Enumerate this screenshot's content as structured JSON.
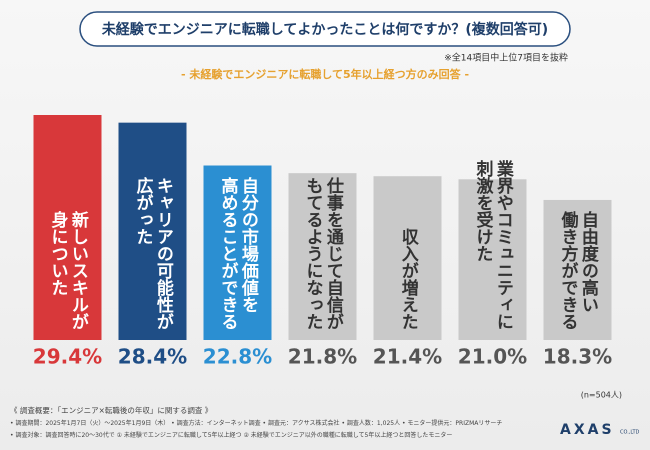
{
  "chart_data": {
    "type": "bar",
    "title": "未経験でエンジニアに転職してよかったことは何ですか？(複数回答可)",
    "note": "※全14項目中上位7項目を抜粋",
    "subtitle": "- 未経験でエンジニアに転職して5年以上経つ方のみ回答 -",
    "categories": [
      "新しいスキルが\n身についた",
      "キャリアの可能性が\n広がった",
      "自分の市場価値を\n高めることができる",
      "仕事を通じて自信が\nもてるようになった",
      "収入が増えた",
      "業界やコミュニティに\n刺激を受けた",
      "自由度の高い\n働き方ができる"
    ],
    "values": [
      29.4,
      28.4,
      22.8,
      21.8,
      21.4,
      21.0,
      18.3
    ],
    "value_labels": [
      "29.4%",
      "28.4%",
      "22.8%",
      "21.8%",
      "21.4%",
      "21.0%",
      "18.3%"
    ],
    "colors": [
      "#d8383a",
      "#1f4e86",
      "#2b8fd2",
      "#c9c9c9",
      "#c9c9c9",
      "#c9c9c9",
      "#c9c9c9"
    ],
    "label_colors": [
      "#d8383a",
      "#1f4e86",
      "#2b8fd2",
      "#555555",
      "#555555",
      "#555555",
      "#555555"
    ],
    "sample": "(n=504人)",
    "footer": [
      "《 調査概要：「エンジニア×転職後の年収」に関する調査 》",
      "• 調査期間：2025年1月7日（火）～2025年1月9日（木） • 調査方法：インターネット調査 • 調査元：アクサス株式会社 • 調査人数：1,025人 • モニター提供元：PRIZMAリサーチ",
      "• 調査対象：調査回答時に20～30代で ① 未経験でエンジニアに転職して5年以上経つ ② 未経験でエンジニア以外の職種に転職して5年以上経つと回答したモニター"
    ],
    "logo": "AXAS",
    "logo_sub": "CO.,LTD"
  }
}
